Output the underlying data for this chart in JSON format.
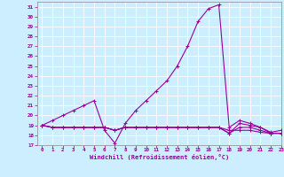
{
  "xlabel": "Windchill (Refroidissement éolien,°C)",
  "background_color": "#cceeff",
  "grid_color": "#ffffff",
  "line_color": "#990099",
  "x_hours": [
    0,
    1,
    2,
    3,
    4,
    5,
    6,
    7,
    8,
    9,
    10,
    11,
    12,
    13,
    14,
    15,
    16,
    17,
    18,
    19,
    20,
    21,
    22,
    23
  ],
  "series1": [
    19.0,
    19.5,
    20.0,
    20.5,
    21.0,
    21.5,
    18.5,
    17.2,
    19.2,
    20.5,
    21.5,
    22.5,
    23.5,
    25.0,
    27.0,
    29.5,
    30.8,
    31.2,
    18.8,
    19.5,
    19.2,
    18.8,
    18.3,
    18.5
  ],
  "series2": [
    19.0,
    18.8,
    18.8,
    18.8,
    18.8,
    18.8,
    18.8,
    18.5,
    18.8,
    18.8,
    18.8,
    18.8,
    18.8,
    18.8,
    18.8,
    18.8,
    18.8,
    18.8,
    18.5,
    18.5,
    18.5,
    18.3,
    18.2,
    18.2
  ],
  "series3": [
    19.0,
    18.8,
    18.8,
    18.8,
    18.8,
    18.8,
    18.8,
    18.5,
    18.8,
    18.8,
    18.8,
    18.8,
    18.8,
    18.8,
    18.8,
    18.8,
    18.8,
    18.8,
    18.2,
    18.8,
    18.8,
    18.5,
    18.2,
    18.2
  ],
  "series4": [
    19.0,
    18.8,
    18.8,
    18.8,
    18.8,
    18.8,
    18.8,
    18.5,
    18.8,
    18.8,
    18.8,
    18.8,
    18.8,
    18.8,
    18.8,
    18.8,
    18.8,
    18.8,
    18.2,
    19.2,
    19.0,
    18.8,
    18.2,
    18.2
  ],
  "ylim": [
    17,
    31.5
  ],
  "xlim": [
    -0.5,
    23
  ],
  "yticks": [
    17,
    18,
    19,
    20,
    21,
    22,
    23,
    24,
    25,
    26,
    27,
    28,
    29,
    30,
    31
  ],
  "xticks": [
    0,
    1,
    2,
    3,
    4,
    5,
    6,
    7,
    8,
    9,
    10,
    11,
    12,
    13,
    14,
    15,
    16,
    17,
    18,
    19,
    20,
    21,
    22,
    23
  ]
}
